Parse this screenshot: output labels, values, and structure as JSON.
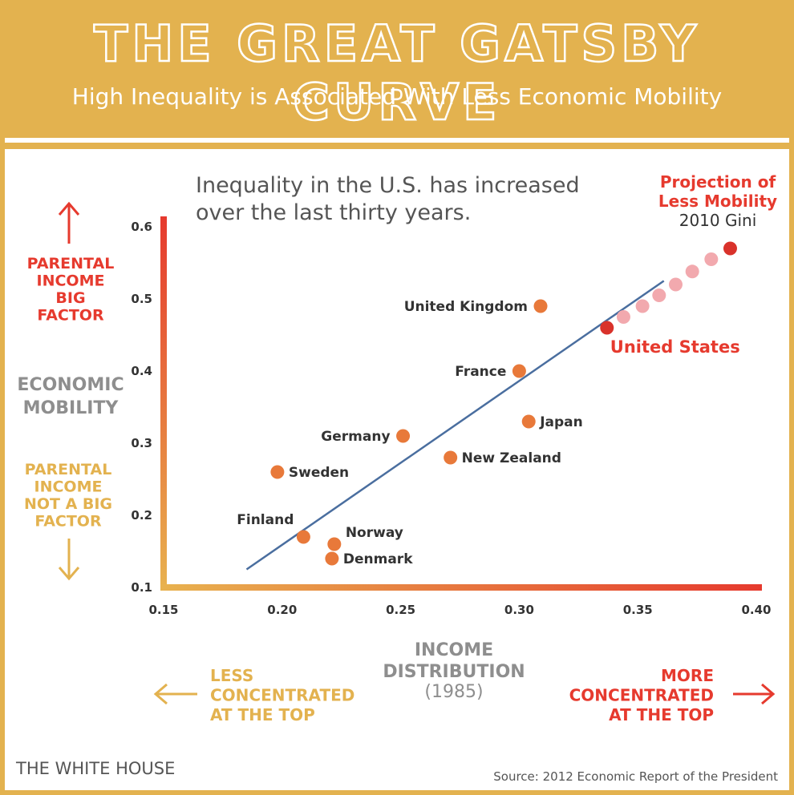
{
  "header": {
    "title": "THE GREAT GATSBY CURVE",
    "subtitle": "High Inequality is Associated With Less Economic Mobility"
  },
  "annotation": "Inequality in the U.S. has increased|over the last thirty years.",
  "projection": {
    "line1": "Projection of",
    "line2": "Less Mobility",
    "line3": "2010 Gini"
  },
  "y_axis": {
    "label": "ECONOMIC|MOBILITY",
    "top_label": "PARENTAL|INCOME|BIG|FACTOR",
    "bottom_label": "PARENTAL|INCOME|NOT A BIG|FACTOR"
  },
  "x_axis": {
    "label": "INCOME|DISTRIBUTION",
    "sublabel": "(1985)",
    "left_label": "LESS|CONCENTRATED|AT THE TOP",
    "right_label": "MORE|CONCENTRATED|AT THE TOP"
  },
  "footer": {
    "left": "THE WHITE HOUSE",
    "right": "Source: 2012 Economic Report of the President"
  },
  "colors": {
    "gold": "#E3B24F",
    "red": "#E63A2E",
    "orange": "#E8793A",
    "point_red": "#D9322B",
    "projection_pink": "#F2A9AE",
    "trend": "#4A6E9F",
    "gray_label": "#8E8E8E",
    "text_dark": "#333333"
  },
  "chart_data": {
    "type": "scatter",
    "xlim": [
      0.15,
      0.4
    ],
    "ylim": [
      0.1,
      0.6
    ],
    "xticks": [
      "0.15",
      "0.20",
      "0.25",
      "0.30",
      "0.35",
      "0.40"
    ],
    "yticks": [
      "0.1",
      "0.2",
      "0.3",
      "0.4",
      "0.5",
      "0.6"
    ],
    "xticks_values": [
      0.15,
      0.2,
      0.25,
      0.3,
      0.35,
      0.4
    ],
    "yticks_values": [
      0.1,
      0.2,
      0.3,
      0.4,
      0.5,
      0.6
    ],
    "points": [
      {
        "name": "United Kingdom",
        "x": 0.309,
        "y": 0.49,
        "label_side": "left"
      },
      {
        "name": "France",
        "x": 0.3,
        "y": 0.4,
        "label_side": "left"
      },
      {
        "name": "Japan",
        "x": 0.304,
        "y": 0.33,
        "label_side": "right"
      },
      {
        "name": "Germany",
        "x": 0.251,
        "y": 0.31,
        "label_side": "left"
      },
      {
        "name": "New Zealand",
        "x": 0.271,
        "y": 0.28,
        "label_side": "right"
      },
      {
        "name": "Sweden",
        "x": 0.198,
        "y": 0.26,
        "label_side": "right"
      },
      {
        "name": "Finland",
        "x": 0.209,
        "y": 0.17,
        "label_side": "above-left"
      },
      {
        "name": "Norway",
        "x": 0.222,
        "y": 0.16,
        "label_side": "above-right"
      },
      {
        "name": "Denmark",
        "x": 0.221,
        "y": 0.14,
        "label_side": "right"
      },
      {
        "name": "United States",
        "x": 0.337,
        "y": 0.46,
        "label_side": "below-right",
        "highlight": true
      }
    ],
    "projection_points": [
      {
        "x": 0.344,
        "y": 0.475
      },
      {
        "x": 0.352,
        "y": 0.49
      },
      {
        "x": 0.359,
        "y": 0.505
      },
      {
        "x": 0.366,
        "y": 0.52
      },
      {
        "x": 0.373,
        "y": 0.538
      },
      {
        "x": 0.381,
        "y": 0.555
      },
      {
        "x": 0.389,
        "y": 0.57,
        "endpoint": true
      }
    ],
    "trend_line": {
      "x1": 0.185,
      "y1": 0.125,
      "x2": 0.361,
      "y2": 0.525
    }
  }
}
